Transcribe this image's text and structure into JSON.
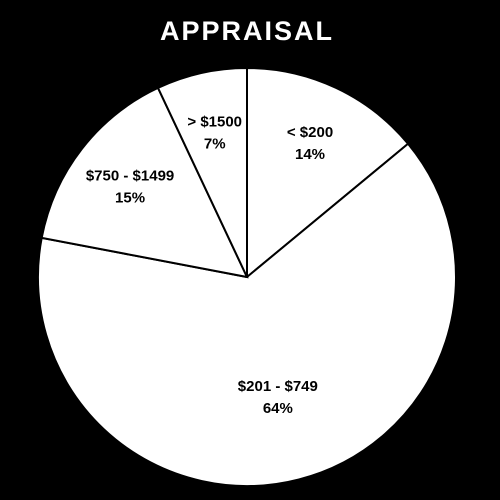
{
  "chart_data": {
    "type": "pie",
    "title": "APPRAISAL",
    "categories": [
      "< $200",
      "$201 - $749",
      "$750 - $1499",
      "> $1500"
    ],
    "values": [
      14,
      64,
      15,
      7
    ],
    "value_labels": [
      "14%",
      "64%",
      "15%",
      "7%"
    ],
    "color": "#ffffff"
  }
}
